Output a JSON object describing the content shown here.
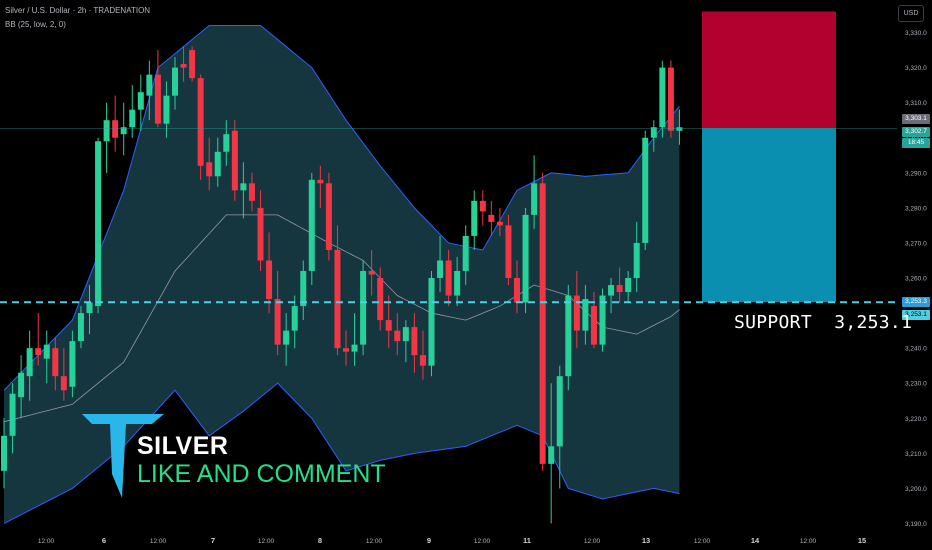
{
  "header": {
    "title": "Silver / U.S. Dollar · 2h · TRADENATION",
    "indicator": "BB (25, low, 2, 0)",
    "currency": "USD"
  },
  "annotations": {
    "support_label": "SUPPORT",
    "support_value": "3,253.1",
    "brand_title": "SILVER",
    "brand_subtitle": "LIKE AND COMMENT"
  },
  "price_tags": {
    "upper": "3,303.1",
    "current": "3,302.7",
    "countdown": "18:45",
    "support1": "3,253.3",
    "support2": "3,253.1"
  },
  "colors": {
    "up": "#26d19a",
    "down": "#f23645",
    "band_fill": "#16363f",
    "band_line": "#2962ff",
    "basis_line": "#9598a1",
    "support_line": "#4dd0e1",
    "stop_box": "#b2002f",
    "target_box": "#0b8fb0"
  },
  "chart_data": {
    "type": "candlestick",
    "symbol": "Silver / U.S. Dollar",
    "timeframe": "2h",
    "y_range": [
      3187,
      3335
    ],
    "y_ticks": [
      "3,330.0",
      "3,320.0",
      "3,310.0",
      "3,300.0",
      "3,290.0",
      "3,280.0",
      "3,270.0",
      "3,260.0",
      "3,250.0",
      "3,240.0",
      "3,230.0",
      "3,220.0",
      "3,210.0",
      "3,200.0",
      "3,190.0"
    ],
    "x_ticks": [
      "12:00",
      "6",
      "12:00",
      "7",
      "12:00",
      "8",
      "12:00",
      "9",
      "12:00",
      "11",
      "12:00",
      "13",
      "12:00",
      "14",
      "12:00",
      "15"
    ],
    "candles": [
      {
        "o": 3205,
        "h": 3220,
        "l": 3200,
        "c": 3215
      },
      {
        "o": 3215,
        "h": 3230,
        "l": 3210,
        "c": 3227
      },
      {
        "o": 3226,
        "h": 3238,
        "l": 3220,
        "c": 3233
      },
      {
        "o": 3232,
        "h": 3245,
        "l": 3225,
        "c": 3240
      },
      {
        "o": 3240,
        "h": 3250,
        "l": 3235,
        "c": 3238
      },
      {
        "o": 3237,
        "h": 3245,
        "l": 3230,
        "c": 3241
      },
      {
        "o": 3240,
        "h": 3243,
        "l": 3228,
        "c": 3232
      },
      {
        "o": 3232,
        "h": 3240,
        "l": 3225,
        "c": 3228
      },
      {
        "o": 3229,
        "h": 3245,
        "l": 3226,
        "c": 3242
      },
      {
        "o": 3242,
        "h": 3252,
        "l": 3240,
        "c": 3250
      },
      {
        "o": 3250,
        "h": 3258,
        "l": 3244,
        "c": 3253
      },
      {
        "o": 3252,
        "h": 3300,
        "l": 3250,
        "c": 3299
      },
      {
        "o": 3299,
        "h": 3310,
        "l": 3290,
        "c": 3305
      },
      {
        "o": 3305,
        "h": 3312,
        "l": 3296,
        "c": 3300
      },
      {
        "o": 3301,
        "h": 3310,
        "l": 3295,
        "c": 3303
      },
      {
        "o": 3303,
        "h": 3315,
        "l": 3300,
        "c": 3308
      },
      {
        "o": 3308,
        "h": 3318,
        "l": 3302,
        "c": 3313
      },
      {
        "o": 3312,
        "h": 3322,
        "l": 3305,
        "c": 3318
      },
      {
        "o": 3318,
        "h": 3325,
        "l": 3303,
        "c": 3304
      },
      {
        "o": 3304,
        "h": 3316,
        "l": 3300,
        "c": 3312
      },
      {
        "o": 3312,
        "h": 3323,
        "l": 3308,
        "c": 3320
      },
      {
        "o": 3321,
        "h": 3326,
        "l": 3316,
        "c": 3320
      },
      {
        "o": 3325,
        "h": 3326,
        "l": 3316,
        "c": 3317
      },
      {
        "o": 3317,
        "h": 3318,
        "l": 3288,
        "c": 3292
      },
      {
        "o": 3293,
        "h": 3300,
        "l": 3285,
        "c": 3289
      },
      {
        "o": 3289,
        "h": 3300,
        "l": 3286,
        "c": 3296
      },
      {
        "o": 3296,
        "h": 3305,
        "l": 3292,
        "c": 3301
      },
      {
        "o": 3302,
        "h": 3305,
        "l": 3282,
        "c": 3285
      },
      {
        "o": 3285,
        "h": 3293,
        "l": 3277,
        "c": 3287
      },
      {
        "o": 3287,
        "h": 3290,
        "l": 3279,
        "c": 3282
      },
      {
        "o": 3280,
        "h": 3285,
        "l": 3262,
        "c": 3265
      },
      {
        "o": 3265,
        "h": 3273,
        "l": 3250,
        "c": 3254
      },
      {
        "o": 3254,
        "h": 3262,
        "l": 3238,
        "c": 3241
      },
      {
        "o": 3241,
        "h": 3250,
        "l": 3235,
        "c": 3245
      },
      {
        "o": 3245,
        "h": 3255,
        "l": 3240,
        "c": 3252
      },
      {
        "o": 3252,
        "h": 3265,
        "l": 3248,
        "c": 3262
      },
      {
        "o": 3262,
        "h": 3290,
        "l": 3258,
        "c": 3288
      },
      {
        "o": 3288,
        "h": 3292,
        "l": 3280,
        "c": 3287
      },
      {
        "o": 3287,
        "h": 3290,
        "l": 3265,
        "c": 3268
      },
      {
        "o": 3268,
        "h": 3275,
        "l": 3238,
        "c": 3240
      },
      {
        "o": 3240,
        "h": 3245,
        "l": 3235,
        "c": 3239
      },
      {
        "o": 3239,
        "h": 3250,
        "l": 3235,
        "c": 3241
      },
      {
        "o": 3241,
        "h": 3265,
        "l": 3238,
        "c": 3262
      },
      {
        "o": 3262,
        "h": 3268,
        "l": 3255,
        "c": 3261
      },
      {
        "o": 3260,
        "h": 3263,
        "l": 3245,
        "c": 3248
      },
      {
        "o": 3248,
        "h": 3255,
        "l": 3240,
        "c": 3245
      },
      {
        "o": 3245,
        "h": 3250,
        "l": 3238,
        "c": 3242
      },
      {
        "o": 3242,
        "h": 3248,
        "l": 3236,
        "c": 3246
      },
      {
        "o": 3246,
        "h": 3250,
        "l": 3233,
        "c": 3238
      },
      {
        "o": 3238,
        "h": 3245,
        "l": 3231,
        "c": 3235
      },
      {
        "o": 3235,
        "h": 3262,
        "l": 3232,
        "c": 3260
      },
      {
        "o": 3260,
        "h": 3272,
        "l": 3256,
        "c": 3265
      },
      {
        "o": 3265,
        "h": 3268,
        "l": 3252,
        "c": 3255
      },
      {
        "o": 3255,
        "h": 3266,
        "l": 3252,
        "c": 3262
      },
      {
        "o": 3262,
        "h": 3275,
        "l": 3258,
        "c": 3272
      },
      {
        "o": 3272,
        "h": 3285,
        "l": 3268,
        "c": 3282
      },
      {
        "o": 3282,
        "h": 3285,
        "l": 3275,
        "c": 3279
      },
      {
        "o": 3278,
        "h": 3282,
        "l": 3272,
        "c": 3276
      },
      {
        "o": 3276,
        "h": 3280,
        "l": 3272,
        "c": 3275
      },
      {
        "o": 3275,
        "h": 3278,
        "l": 3258,
        "c": 3260
      },
      {
        "o": 3260,
        "h": 3265,
        "l": 3250,
        "c": 3253
      },
      {
        "o": 3253,
        "h": 3280,
        "l": 3250,
        "c": 3278
      },
      {
        "o": 3278,
        "h": 3295,
        "l": 3274,
        "c": 3287
      },
      {
        "o": 3287,
        "h": 3290,
        "l": 3205,
        "c": 3207
      },
      {
        "o": 3207,
        "h": 3230,
        "l": 3190,
        "c": 3212
      },
      {
        "o": 3212,
        "h": 3235,
        "l": 3200,
        "c": 3232
      },
      {
        "o": 3232,
        "h": 3258,
        "l": 3228,
        "c": 3255
      },
      {
        "o": 3255,
        "h": 3262,
        "l": 3240,
        "c": 3245
      },
      {
        "o": 3245,
        "h": 3258,
        "l": 3241,
        "c": 3254
      },
      {
        "o": 3252,
        "h": 3256,
        "l": 3240,
        "c": 3241
      },
      {
        "o": 3241,
        "h": 3257,
        "l": 3239,
        "c": 3255
      },
      {
        "o": 3255,
        "h": 3260,
        "l": 3250,
        "c": 3258
      },
      {
        "o": 3258,
        "h": 3263,
        "l": 3253,
        "c": 3256
      },
      {
        "o": 3256,
        "h": 3262,
        "l": 3253,
        "c": 3260
      },
      {
        "o": 3260,
        "h": 3276,
        "l": 3256,
        "c": 3270
      },
      {
        "o": 3270,
        "h": 3302,
        "l": 3268,
        "c": 3300
      },
      {
        "o": 3300,
        "h": 3305,
        "l": 3296,
        "c": 3303
      },
      {
        "o": 3303,
        "h": 3322,
        "l": 3300,
        "c": 3320
      },
      {
        "o": 3320,
        "h": 3322,
        "l": 3300,
        "c": 3302
      },
      {
        "o": 3302,
        "h": 3308,
        "l": 3298,
        "c": 3303
      }
    ],
    "bb_upper": [
      [
        0,
        3228
      ],
      [
        8,
        3248
      ],
      [
        14,
        3285
      ],
      [
        18,
        3320
      ],
      [
        24,
        3332
      ],
      [
        30,
        3332
      ],
      [
        36,
        3320
      ],
      [
        40,
        3305
      ],
      [
        44,
        3292
      ],
      [
        48,
        3280
      ],
      [
        52,
        3270
      ],
      [
        56,
        3268
      ],
      [
        60,
        3285
      ],
      [
        64,
        3290
      ],
      [
        68,
        3289
      ],
      [
        73,
        3290
      ],
      [
        76,
        3300
      ],
      [
        80,
        3312
      ]
    ],
    "bb_basis": [
      [
        0,
        3219
      ],
      [
        8,
        3224
      ],
      [
        14,
        3236
      ],
      [
        20,
        3262
      ],
      [
        26,
        3278
      ],
      [
        32,
        3278
      ],
      [
        38,
        3270
      ],
      [
        42,
        3265
      ],
      [
        46,
        3255
      ],
      [
        50,
        3250
      ],
      [
        54,
        3248
      ],
      [
        58,
        3252
      ],
      [
        62,
        3258
      ],
      [
        66,
        3255
      ],
      [
        70,
        3246
      ],
      [
        74,
        3244
      ],
      [
        78,
        3249
      ],
      [
        80,
        3253
      ]
    ],
    "bb_lower": [
      [
        0,
        3190
      ],
      [
        8,
        3200
      ],
      [
        14,
        3212
      ],
      [
        20,
        3228
      ],
      [
        24,
        3215
      ],
      [
        28,
        3222
      ],
      [
        32,
        3230
      ],
      [
        36,
        3220
      ],
      [
        40,
        3205
      ],
      [
        44,
        3208
      ],
      [
        48,
        3210
      ],
      [
        54,
        3212
      ],
      [
        60,
        3218
      ],
      [
        63,
        3215
      ],
      [
        66,
        3200
      ],
      [
        70,
        3197
      ],
      [
        76,
        3200
      ],
      [
        80,
        3198
      ]
    ],
    "support_level": 3253.1,
    "position": {
      "entry": 3302.7,
      "stop": 3336,
      "target": 3253.1
    }
  }
}
